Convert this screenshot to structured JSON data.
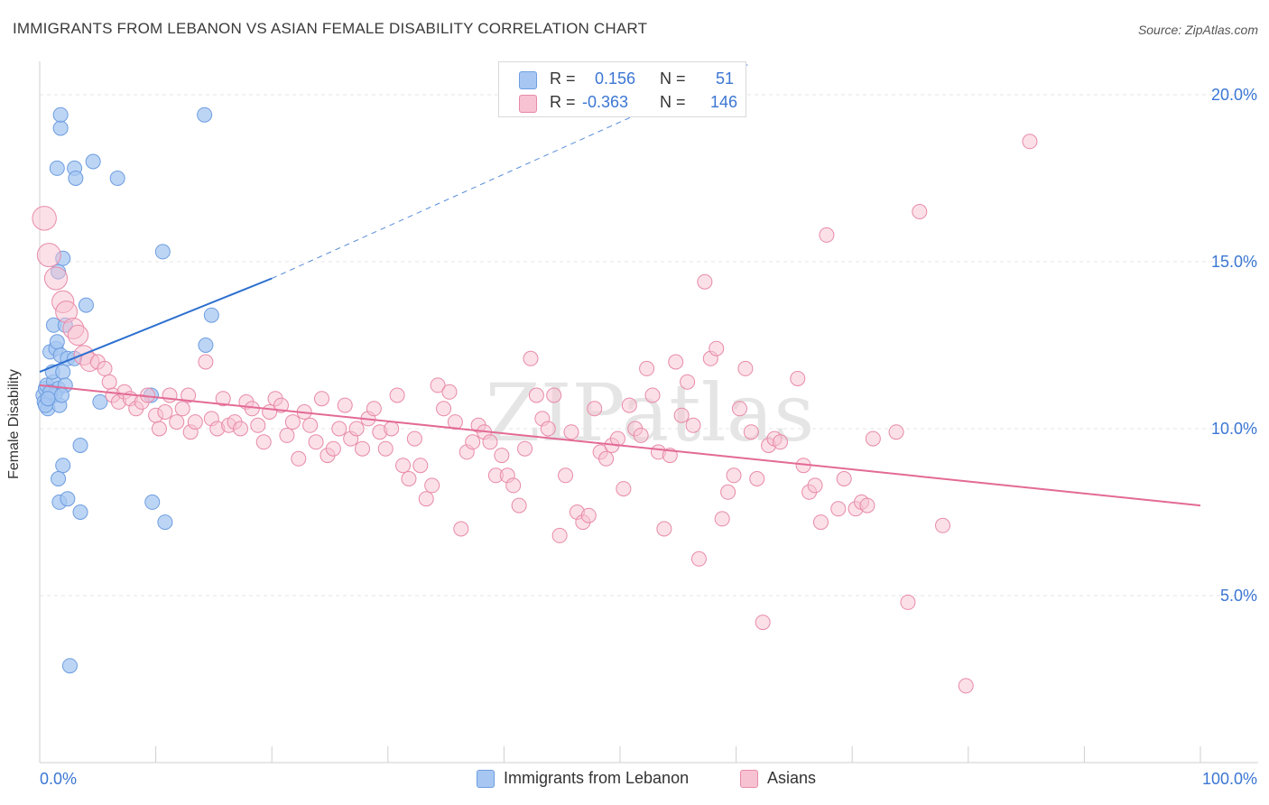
{
  "title": "IMMIGRANTS FROM LEBANON VS ASIAN FEMALE DISABILITY CORRELATION CHART",
  "source": "Source: ZipAtlas.com",
  "watermark": "ZIPatlas",
  "legend": {
    "rows": [
      {
        "r_label": "R =",
        "r_value": "0.156",
        "n_label": "N =",
        "n_value": "51",
        "color": "#a7c7f2",
        "border": "#6d9de0"
      },
      {
        "r_label": "R =",
        "r_value": "-0.363",
        "n_label": "N =",
        "n_value": "146",
        "color": "#f7c2d2",
        "border": "#e88aa8"
      }
    ]
  },
  "bottom_legend": [
    {
      "label": "Immigrants from Lebanon",
      "color": "#a7c7f2",
      "border": "#6d9de0"
    },
    {
      "label": "Asians",
      "color": "#f7c2d2",
      "border": "#e88aa8"
    }
  ],
  "chart_data": {
    "type": "scatter",
    "title": "IMMIGRANTS FROM LEBANON VS ASIAN FEMALE DISABILITY CORRELATION CHART",
    "xlabel": "",
    "ylabel": "Female Disability",
    "xlim": [
      0,
      100
    ],
    "ylim": [
      0,
      21
    ],
    "x_tick_labels": [
      {
        "value": 0,
        "label": "0.0%"
      },
      {
        "value": 100,
        "label": "100.0%"
      }
    ],
    "y_tick_labels": [
      {
        "value": 5,
        "label": "5.0%"
      },
      {
        "value": 10,
        "label": "10.0%"
      },
      {
        "value": 15,
        "label": "15.0%"
      },
      {
        "value": 20,
        "label": "20.0%"
      }
    ],
    "grid": true,
    "series": [
      {
        "name": "Immigrants from Lebanon",
        "color": "#6d9de0",
        "fill": "#a7c7f2",
        "trend": {
          "x0": 0,
          "y0": 11.7,
          "x1": 20,
          "y1": 14.5,
          "dashed_to_x": 61,
          "dashed_to_y": 20.9,
          "color": "#2c6fcf"
        },
        "points": [
          [
            0.3,
            11.0
          ],
          [
            0.5,
            11.2
          ],
          [
            0.4,
            10.8
          ],
          [
            0.6,
            11.3
          ],
          [
            0.8,
            10.9
          ],
          [
            1.0,
            11.1
          ],
          [
            0.7,
            10.6
          ],
          [
            1.2,
            11.4
          ],
          [
            0.9,
            12.3
          ],
          [
            1.4,
            12.4
          ],
          [
            1.5,
            12.6
          ],
          [
            1.8,
            12.2
          ],
          [
            1.1,
            11.7
          ],
          [
            2.0,
            11.7
          ],
          [
            1.6,
            11.2
          ],
          [
            2.2,
            11.3
          ],
          [
            1.3,
            11.0
          ],
          [
            1.7,
            10.7
          ],
          [
            0.5,
            10.7
          ],
          [
            0.9,
            11.1
          ],
          [
            1.9,
            11.0
          ],
          [
            2.4,
            12.1
          ],
          [
            3.0,
            12.1
          ],
          [
            1.2,
            13.1
          ],
          [
            2.2,
            13.1
          ],
          [
            1.6,
            14.7
          ],
          [
            4.0,
            13.7
          ],
          [
            2.0,
            15.1
          ],
          [
            1.5,
            17.8
          ],
          [
            3.0,
            17.8
          ],
          [
            4.6,
            18.0
          ],
          [
            3.1,
            17.5
          ],
          [
            6.7,
            17.5
          ],
          [
            1.8,
            19.0
          ],
          [
            1.8,
            19.4
          ],
          [
            14.2,
            19.4
          ],
          [
            10.6,
            15.3
          ],
          [
            14.8,
            13.4
          ],
          [
            14.3,
            12.5
          ],
          [
            9.6,
            11.0
          ],
          [
            5.2,
            10.8
          ],
          [
            3.5,
            9.5
          ],
          [
            2.0,
            8.9
          ],
          [
            1.6,
            8.5
          ],
          [
            1.7,
            7.8
          ],
          [
            2.4,
            7.9
          ],
          [
            3.5,
            7.5
          ],
          [
            9.7,
            7.8
          ],
          [
            10.8,
            7.2
          ],
          [
            2.6,
            2.9
          ],
          [
            0.7,
            10.9
          ]
        ]
      },
      {
        "name": "Asians",
        "color": "#e88aa8",
        "fill": "#f7c2d2",
        "trend": {
          "x0": 0,
          "y0": 11.3,
          "x1": 100,
          "y1": 7.7,
          "color": "#e36a95"
        },
        "points": [
          [
            0.4,
            16.3
          ],
          [
            0.8,
            15.2
          ],
          [
            1.4,
            14.5
          ],
          [
            2.0,
            13.8
          ],
          [
            2.3,
            13.5
          ],
          [
            2.9,
            13.0
          ],
          [
            3.3,
            12.8
          ],
          [
            3.8,
            12.2
          ],
          [
            4.3,
            12.0
          ],
          [
            5.0,
            12.0
          ],
          [
            5.6,
            11.8
          ],
          [
            6.0,
            11.4
          ],
          [
            6.3,
            11.0
          ],
          [
            6.8,
            10.8
          ],
          [
            7.3,
            11.1
          ],
          [
            7.8,
            10.9
          ],
          [
            8.3,
            10.6
          ],
          [
            8.8,
            10.8
          ],
          [
            9.3,
            11.0
          ],
          [
            10.0,
            10.4
          ],
          [
            10.3,
            10.0
          ],
          [
            10.8,
            10.5
          ],
          [
            11.2,
            11.0
          ],
          [
            11.8,
            10.2
          ],
          [
            12.3,
            10.6
          ],
          [
            12.8,
            11.0
          ],
          [
            13.0,
            9.9
          ],
          [
            13.4,
            10.2
          ],
          [
            14.3,
            12.0
          ],
          [
            14.8,
            10.3
          ],
          [
            15.3,
            10.0
          ],
          [
            15.8,
            10.9
          ],
          [
            16.3,
            10.1
          ],
          [
            16.8,
            10.2
          ],
          [
            17.3,
            10.0
          ],
          [
            17.8,
            10.8
          ],
          [
            18.3,
            10.6
          ],
          [
            18.8,
            10.1
          ],
          [
            19.3,
            9.6
          ],
          [
            19.8,
            10.5
          ],
          [
            20.3,
            10.9
          ],
          [
            20.8,
            10.7
          ],
          [
            21.3,
            9.8
          ],
          [
            21.8,
            10.2
          ],
          [
            22.3,
            9.1
          ],
          [
            22.8,
            10.5
          ],
          [
            23.3,
            10.1
          ],
          [
            23.8,
            9.6
          ],
          [
            24.3,
            10.9
          ],
          [
            24.8,
            9.2
          ],
          [
            25.3,
            9.4
          ],
          [
            25.8,
            10.0
          ],
          [
            26.3,
            10.7
          ],
          [
            26.8,
            9.7
          ],
          [
            27.3,
            10.0
          ],
          [
            27.8,
            9.4
          ],
          [
            28.3,
            10.3
          ],
          [
            28.8,
            10.6
          ],
          [
            29.3,
            9.9
          ],
          [
            29.8,
            9.4
          ],
          [
            30.3,
            10.0
          ],
          [
            30.8,
            11.0
          ],
          [
            31.3,
            8.9
          ],
          [
            31.8,
            8.5
          ],
          [
            32.3,
            9.7
          ],
          [
            32.8,
            8.9
          ],
          [
            33.3,
            7.9
          ],
          [
            33.8,
            8.3
          ],
          [
            34.3,
            11.3
          ],
          [
            34.8,
            10.6
          ],
          [
            35.3,
            11.1
          ],
          [
            35.8,
            10.2
          ],
          [
            36.3,
            7.0
          ],
          [
            36.8,
            9.3
          ],
          [
            37.3,
            9.6
          ],
          [
            37.8,
            10.1
          ],
          [
            38.3,
            9.9
          ],
          [
            38.8,
            9.6
          ],
          [
            39.3,
            8.6
          ],
          [
            39.8,
            9.2
          ],
          [
            40.3,
            8.6
          ],
          [
            40.8,
            8.3
          ],
          [
            41.3,
            7.7
          ],
          [
            41.8,
            9.4
          ],
          [
            42.3,
            12.1
          ],
          [
            42.8,
            11.0
          ],
          [
            43.3,
            10.3
          ],
          [
            43.8,
            10.0
          ],
          [
            44.3,
            11.0
          ],
          [
            44.8,
            6.8
          ],
          [
            45.3,
            8.6
          ],
          [
            45.8,
            9.9
          ],
          [
            46.3,
            7.5
          ],
          [
            46.8,
            7.2
          ],
          [
            47.3,
            7.4
          ],
          [
            47.8,
            10.6
          ],
          [
            48.3,
            9.3
          ],
          [
            48.8,
            9.1
          ],
          [
            49.3,
            9.5
          ],
          [
            49.8,
            9.7
          ],
          [
            50.3,
            8.2
          ],
          [
            50.8,
            10.7
          ],
          [
            51.3,
            10.0
          ],
          [
            51.8,
            9.8
          ],
          [
            52.3,
            11.8
          ],
          [
            52.8,
            11.0
          ],
          [
            53.3,
            9.3
          ],
          [
            53.8,
            7.0
          ],
          [
            54.3,
            9.2
          ],
          [
            54.8,
            12.0
          ],
          [
            55.3,
            10.4
          ],
          [
            55.8,
            11.4
          ],
          [
            56.3,
            10.1
          ],
          [
            56.8,
            6.1
          ],
          [
            57.3,
            14.4
          ],
          [
            57.8,
            12.1
          ],
          [
            58.3,
            12.4
          ],
          [
            58.8,
            7.3
          ],
          [
            59.3,
            8.1
          ],
          [
            59.8,
            8.6
          ],
          [
            60.3,
            10.6
          ],
          [
            60.8,
            11.8
          ],
          [
            61.3,
            9.9
          ],
          [
            61.8,
            8.5
          ],
          [
            62.3,
            4.2
          ],
          [
            62.8,
            9.5
          ],
          [
            63.3,
            9.7
          ],
          [
            63.8,
            9.6
          ],
          [
            65.3,
            11.5
          ],
          [
            65.8,
            8.9
          ],
          [
            66.3,
            8.1
          ],
          [
            66.8,
            8.3
          ],
          [
            67.3,
            7.2
          ],
          [
            67.8,
            15.8
          ],
          [
            68.8,
            7.6
          ],
          [
            69.3,
            8.5
          ],
          [
            70.3,
            7.6
          ],
          [
            70.8,
            7.8
          ],
          [
            71.3,
            7.7
          ],
          [
            71.8,
            9.7
          ],
          [
            73.8,
            9.9
          ],
          [
            74.8,
            4.8
          ],
          [
            75.8,
            16.5
          ],
          [
            77.8,
            7.1
          ],
          [
            79.8,
            2.3
          ],
          [
            85.3,
            18.6
          ]
        ]
      }
    ]
  }
}
